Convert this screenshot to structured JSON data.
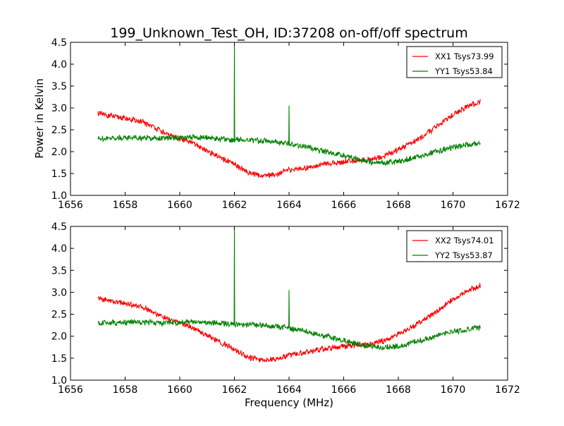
{
  "figure": {
    "title": "199_Unknown_Test_OH, ID:37208 on-off/off spectrum",
    "xlabel": "Frequency (MHz)",
    "ylabel": "Power in Kelvin"
  },
  "chart_data": [
    {
      "type": "line",
      "title": "199_Unknown_Test_OH, ID:37208 on-off/off spectrum",
      "xlabel": "",
      "ylabel": "Power in Kelvin",
      "xlim": [
        1656,
        1672
      ],
      "ylim": [
        1.0,
        4.5
      ],
      "xticks": [
        "1656",
        "1658",
        "1660",
        "1662",
        "1664",
        "1666",
        "1668",
        "1670",
        "1672"
      ],
      "yticks": [
        "1.0",
        "1.5",
        "2.0",
        "2.5",
        "3.0",
        "3.5",
        "4.0",
        "4.5"
      ],
      "grid": false,
      "legend_position": "top-right",
      "series": [
        {
          "name": "XX1 Tsys73.99",
          "color": "#ff0000",
          "x": [
            1657.0,
            1657.5,
            1658.0,
            1658.5,
            1659.0,
            1659.5,
            1660.0,
            1660.5,
            1661.0,
            1661.5,
            1662.0,
            1662.5,
            1663.0,
            1663.5,
            1664.0,
            1664.5,
            1665.0,
            1665.5,
            1666.0,
            1666.5,
            1667.0,
            1667.5,
            1668.0,
            1668.5,
            1669.0,
            1669.5,
            1670.0,
            1670.5,
            1671.0
          ],
          "values": [
            2.87,
            2.81,
            2.76,
            2.7,
            2.58,
            2.4,
            2.3,
            2.18,
            2.02,
            1.85,
            1.7,
            1.53,
            1.45,
            1.48,
            1.58,
            1.62,
            1.68,
            1.73,
            1.77,
            1.8,
            1.82,
            1.9,
            2.05,
            2.2,
            2.4,
            2.62,
            2.84,
            3.02,
            3.15
          ]
        },
        {
          "name": "YY1 Tsys53.84",
          "color": "#008000",
          "x": [
            1657.0,
            1657.5,
            1658.0,
            1658.5,
            1659.0,
            1659.5,
            1660.0,
            1660.5,
            1661.0,
            1661.5,
            1662.0,
            1662.5,
            1663.0,
            1663.5,
            1664.0,
            1664.5,
            1665.0,
            1665.5,
            1666.0,
            1666.5,
            1667.0,
            1667.5,
            1668.0,
            1668.5,
            1669.0,
            1669.5,
            1670.0,
            1670.5,
            1671.0
          ],
          "values": [
            2.3,
            2.31,
            2.32,
            2.32,
            2.31,
            2.3,
            2.32,
            2.32,
            2.32,
            2.29,
            2.27,
            2.27,
            2.25,
            2.22,
            2.18,
            2.13,
            2.05,
            1.98,
            1.91,
            1.83,
            1.76,
            1.74,
            1.77,
            1.85,
            1.93,
            2.03,
            2.1,
            2.15,
            2.2
          ]
        }
      ],
      "spikes": [
        {
          "series": "YY1 Tsys53.84",
          "x": 1662.0,
          "peak": 4.5
        },
        {
          "series": "YY1 Tsys53.84",
          "x": 1664.0,
          "peak": 3.05
        }
      ]
    },
    {
      "type": "line",
      "title": "",
      "xlabel": "Frequency (MHz)",
      "ylabel": "",
      "xlim": [
        1656,
        1672
      ],
      "ylim": [
        1.0,
        4.5
      ],
      "xticks": [
        "1656",
        "1658",
        "1660",
        "1662",
        "1664",
        "1666",
        "1668",
        "1670",
        "1672"
      ],
      "yticks": [
        "1.0",
        "1.5",
        "2.0",
        "2.5",
        "3.0",
        "3.5",
        "4.0",
        "4.5"
      ],
      "grid": false,
      "legend_position": "top-right",
      "series": [
        {
          "name": "XX2 Tsys74.01",
          "color": "#ff0000",
          "x": [
            1657.0,
            1657.5,
            1658.0,
            1658.5,
            1659.0,
            1659.5,
            1660.0,
            1660.5,
            1661.0,
            1661.5,
            1662.0,
            1662.5,
            1663.0,
            1663.5,
            1664.0,
            1664.5,
            1665.0,
            1665.5,
            1666.0,
            1666.5,
            1667.0,
            1667.5,
            1668.0,
            1668.5,
            1669.0,
            1669.5,
            1670.0,
            1670.5,
            1671.0
          ],
          "values": [
            2.86,
            2.8,
            2.75,
            2.69,
            2.57,
            2.4,
            2.3,
            2.18,
            2.02,
            1.85,
            1.7,
            1.53,
            1.45,
            1.48,
            1.58,
            1.62,
            1.68,
            1.73,
            1.77,
            1.8,
            1.82,
            1.9,
            2.05,
            2.2,
            2.4,
            2.62,
            2.84,
            3.02,
            3.15
          ]
        },
        {
          "name": "YY2 Tsys53.87",
          "color": "#008000",
          "x": [
            1657.0,
            1657.5,
            1658.0,
            1658.5,
            1659.0,
            1659.5,
            1660.0,
            1660.5,
            1661.0,
            1661.5,
            1662.0,
            1662.5,
            1663.0,
            1663.5,
            1664.0,
            1664.5,
            1665.0,
            1665.5,
            1666.0,
            1666.5,
            1667.0,
            1667.5,
            1668.0,
            1668.5,
            1669.0,
            1669.5,
            1670.0,
            1670.5,
            1671.0
          ],
          "values": [
            2.3,
            2.31,
            2.32,
            2.32,
            2.31,
            2.3,
            2.32,
            2.32,
            2.32,
            2.29,
            2.27,
            2.27,
            2.25,
            2.22,
            2.18,
            2.13,
            2.05,
            1.98,
            1.91,
            1.83,
            1.76,
            1.74,
            1.77,
            1.85,
            1.93,
            2.03,
            2.1,
            2.15,
            2.2
          ]
        }
      ],
      "spikes": [
        {
          "series": "YY2 Tsys53.87",
          "x": 1662.0,
          "peak": 4.5
        },
        {
          "series": "YY2 Tsys53.87",
          "x": 1664.0,
          "peak": 3.05
        }
      ]
    }
  ]
}
